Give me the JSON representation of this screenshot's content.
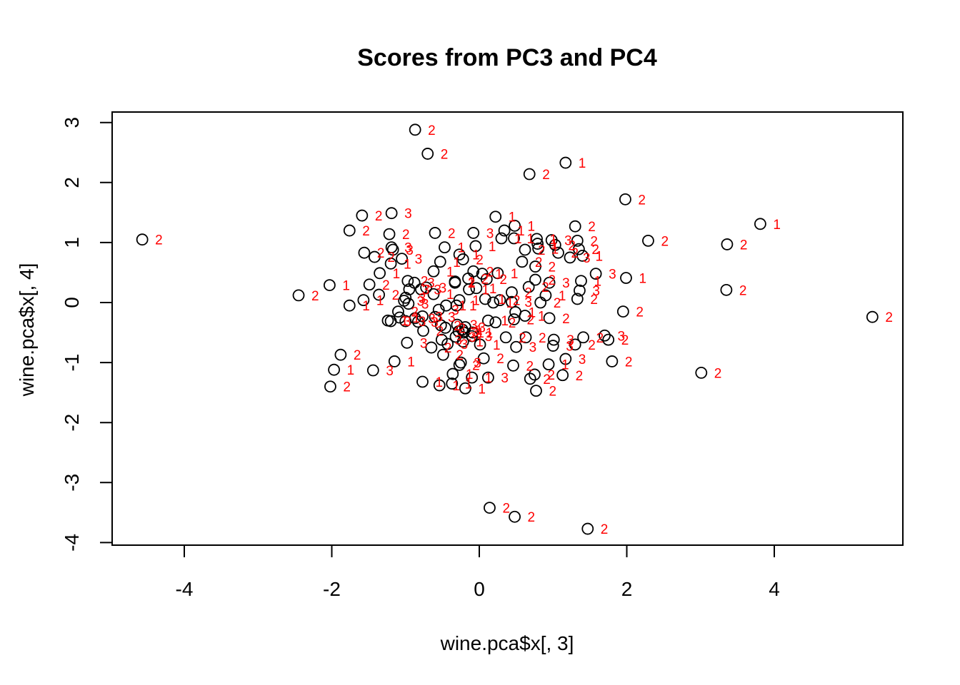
{
  "chart_data": {
    "type": "scatter",
    "title": "Scores from PC3 and PC4",
    "xlabel": "wine.pca$x[, 3]",
    "ylabel": "wine.pca$x[, 4]",
    "xlim": [
      -5,
      5.7
    ],
    "ylim": [
      -4,
      3.1
    ],
    "xticks": [
      -4,
      -2,
      0,
      2,
      4
    ],
    "yticks": [
      -4,
      -3,
      -2,
      -1,
      0,
      1,
      2,
      3
    ],
    "grid": false,
    "legend": "none",
    "point_color": "#000000",
    "label_color": "#ff0000",
    "points": [
      {
        "x": -0.87,
        "y": 2.88,
        "label": "2"
      },
      {
        "x": -0.7,
        "y": 2.48,
        "label": "2"
      },
      {
        "x": 0.68,
        "y": 2.14,
        "label": "2"
      },
      {
        "x": 1.17,
        "y": 2.33,
        "label": "1"
      },
      {
        "x": 1.98,
        "y": 1.72,
        "label": "2"
      },
      {
        "x": 3.81,
        "y": 1.31,
        "label": "1"
      },
      {
        "x": -4.57,
        "y": 1.05,
        "label": "2"
      },
      {
        "x": 2.29,
        "y": 1.03,
        "label": "2"
      },
      {
        "x": 3.36,
        "y": 0.97,
        "label": "2"
      },
      {
        "x": -2.45,
        "y": 0.12,
        "label": "2"
      },
      {
        "x": 3.35,
        "y": 0.21,
        "label": "2"
      },
      {
        "x": 5.33,
        "y": -0.24,
        "label": "2"
      },
      {
        "x": 3.01,
        "y": -1.17,
        "label": "2"
      },
      {
        "x": 0.14,
        "y": -3.42,
        "label": "2"
      },
      {
        "x": 0.48,
        "y": -3.57,
        "label": "2"
      },
      {
        "x": 1.47,
        "y": -3.77,
        "label": "2"
      },
      {
        "x": 1.99,
        "y": 0.41,
        "label": "1"
      },
      {
        "x": 1.95,
        "y": -0.15,
        "label": "2"
      },
      {
        "x": 1.8,
        "y": -0.98,
        "label": "2"
      },
      {
        "x": 1.75,
        "y": -0.62,
        "label": "2"
      },
      {
        "x": 1.7,
        "y": -0.55,
        "label": "3"
      },
      {
        "x": 1.58,
        "y": 0.48,
        "label": "3"
      },
      {
        "x": -2.03,
        "y": 0.29,
        "label": "1"
      },
      {
        "x": -1.76,
        "y": -0.05,
        "label": "1"
      },
      {
        "x": -1.76,
        "y": 1.2,
        "label": "2"
      },
      {
        "x": -1.88,
        "y": -0.87,
        "label": "2"
      },
      {
        "x": -1.97,
        "y": -1.12,
        "label": "1"
      },
      {
        "x": -2.02,
        "y": -1.4,
        "label": "2"
      },
      {
        "x": -1.44,
        "y": -1.13,
        "label": "3"
      },
      {
        "x": -1.15,
        "y": -0.98,
        "label": "1"
      },
      {
        "x": -1.59,
        "y": 1.45,
        "label": "2"
      },
      {
        "x": -1.19,
        "y": 1.49,
        "label": "3"
      },
      {
        "x": -1.22,
        "y": 1.14,
        "label": "2"
      },
      {
        "x": -1.56,
        "y": 0.83,
        "label": "2"
      },
      {
        "x": -1.42,
        "y": 0.76,
        "label": "2"
      },
      {
        "x": -1.17,
        "y": 0.88,
        "label": "3"
      },
      {
        "x": -1.19,
        "y": 0.92,
        "label": "3"
      },
      {
        "x": -1.05,
        "y": 0.73,
        "label": "3"
      },
      {
        "x": -1.2,
        "y": 0.65,
        "label": "1"
      },
      {
        "x": -1.35,
        "y": 0.49,
        "label": "1"
      },
      {
        "x": -1.49,
        "y": 0.3,
        "label": "2"
      },
      {
        "x": -1.36,
        "y": 0.13,
        "label": "2"
      },
      {
        "x": -1.57,
        "y": 0.04,
        "label": "1"
      },
      {
        "x": -0.97,
        "y": 0.36,
        "label": "2"
      },
      {
        "x": -0.88,
        "y": 0.33,
        "label": "3"
      },
      {
        "x": -0.95,
        "y": 0.22,
        "label": "3"
      },
      {
        "x": -1.0,
        "y": 0.08,
        "label": "3"
      },
      {
        "x": -1.02,
        "y": 0.03,
        "label": "3"
      },
      {
        "x": -0.96,
        "y": -0.02,
        "label": "3"
      },
      {
        "x": -1.1,
        "y": -0.15,
        "label": "2"
      },
      {
        "x": -1.24,
        "y": -0.3,
        "label": "1"
      },
      {
        "x": -1.2,
        "y": -0.31,
        "label": "3"
      },
      {
        "x": -1.08,
        "y": -0.25,
        "label": "1"
      },
      {
        "x": -1.0,
        "y": -0.31,
        "label": "3"
      },
      {
        "x": -0.98,
        "y": -0.67,
        "label": "3"
      },
      {
        "x": -0.77,
        "y": -1.32,
        "label": "1"
      },
      {
        "x": -0.76,
        "y": -0.47,
        "label": "2"
      },
      {
        "x": -0.65,
        "y": -0.75,
        "label": "2"
      },
      {
        "x": -0.49,
        "y": -0.87,
        "label": "2"
      },
      {
        "x": -0.51,
        "y": -0.62,
        "label": "3"
      },
      {
        "x": -0.36,
        "y": -1.19,
        "label": "1"
      },
      {
        "x": -0.27,
        "y": -1.04,
        "label": "2"
      },
      {
        "x": -0.54,
        "y": -1.38,
        "label": "1"
      },
      {
        "x": -0.37,
        "y": -1.35,
        "label": "1"
      },
      {
        "x": -0.19,
        "y": -1.43,
        "label": "1"
      },
      {
        "x": -0.1,
        "y": -1.25,
        "label": "1"
      },
      {
        "x": 0.12,
        "y": -1.25,
        "label": "3"
      },
      {
        "x": 0.06,
        "y": -0.93,
        "label": "2"
      },
      {
        "x": 0.46,
        "y": -1.05,
        "label": "2"
      },
      {
        "x": 0.69,
        "y": -1.27,
        "label": "2"
      },
      {
        "x": 0.77,
        "y": -1.47,
        "label": "2"
      },
      {
        "x": 0.75,
        "y": -1.2,
        "label": "2"
      },
      {
        "x": 0.94,
        "y": -1.03,
        "label": "1"
      },
      {
        "x": 1.13,
        "y": -1.21,
        "label": "2"
      },
      {
        "x": 1.17,
        "y": -0.94,
        "label": "3"
      },
      {
        "x": 1.3,
        "y": -0.7,
        "label": "2"
      },
      {
        "x": 1.41,
        "y": -0.58,
        "label": "2"
      },
      {
        "x": 1.0,
        "y": -0.72,
        "label": "3"
      },
      {
        "x": 1.01,
        "y": -0.62,
        "label": "3"
      },
      {
        "x": 0.63,
        "y": -0.58,
        "label": "2"
      },
      {
        "x": 0.5,
        "y": -0.74,
        "label": "3"
      },
      {
        "x": 0.95,
        "y": -0.26,
        "label": "2"
      },
      {
        "x": 0.83,
        "y": 0.0,
        "label": "2"
      },
      {
        "x": 0.9,
        "y": 0.12,
        "label": "1"
      },
      {
        "x": 0.76,
        "y": 0.38,
        "label": "2"
      },
      {
        "x": 0.95,
        "y": 0.33,
        "label": "3"
      },
      {
        "x": 0.67,
        "y": 0.26,
        "label": "2"
      },
      {
        "x": 1.33,
        "y": 0.06,
        "label": "2"
      },
      {
        "x": 1.36,
        "y": 0.2,
        "label": "3"
      },
      {
        "x": 1.38,
        "y": 0.36,
        "label": "1"
      },
      {
        "x": 1.3,
        "y": 1.27,
        "label": "2"
      },
      {
        "x": 1.33,
        "y": 1.03,
        "label": "2"
      },
      {
        "x": 1.35,
        "y": 0.89,
        "label": "2"
      },
      {
        "x": 1.4,
        "y": 0.78,
        "label": "1"
      },
      {
        "x": 1.23,
        "y": 0.75,
        "label": "3"
      },
      {
        "x": 0.98,
        "y": 1.04,
        "label": "3"
      },
      {
        "x": 1.03,
        "y": 0.96,
        "label": "2"
      },
      {
        "x": 1.07,
        "y": 0.83,
        "label": "2"
      },
      {
        "x": 0.78,
        "y": 1.06,
        "label": "1"
      },
      {
        "x": 0.79,
        "y": 0.98,
        "label": "1"
      },
      {
        "x": 0.8,
        "y": 0.9,
        "label": "1"
      },
      {
        "x": 0.62,
        "y": 0.88,
        "label": "2"
      },
      {
        "x": 0.76,
        "y": 0.6,
        "label": "2"
      },
      {
        "x": 0.58,
        "y": 0.68,
        "label": "2"
      },
      {
        "x": 0.48,
        "y": 1.28,
        "label": "1"
      },
      {
        "x": 0.47,
        "y": 1.07,
        "label": "1"
      },
      {
        "x": 0.34,
        "y": 1.2,
        "label": "1"
      },
      {
        "x": 0.22,
        "y": 1.43,
        "label": "1"
      },
      {
        "x": 0.3,
        "y": 1.07,
        "label": "1"
      },
      {
        "x": -0.08,
        "y": 1.16,
        "label": "3"
      },
      {
        "x": -0.05,
        "y": 0.94,
        "label": "1"
      },
      {
        "x": -0.22,
        "y": 0.72,
        "label": "2"
      },
      {
        "x": -0.27,
        "y": 0.8,
        "label": "1"
      },
      {
        "x": -0.47,
        "y": 0.92,
        "label": "1"
      },
      {
        "x": -0.6,
        "y": 1.16,
        "label": "2"
      },
      {
        "x": -0.53,
        "y": 0.68,
        "label": "1"
      },
      {
        "x": -0.62,
        "y": 0.52,
        "label": "1"
      },
      {
        "x": -0.33,
        "y": 0.35,
        "label": "1"
      },
      {
        "x": -0.33,
        "y": 0.33,
        "label": "2"
      },
      {
        "x": -0.15,
        "y": 0.4,
        "label": "2"
      },
      {
        "x": -0.14,
        "y": 0.22,
        "label": "1"
      },
      {
        "x": -0.04,
        "y": 0.24,
        "label": "1"
      },
      {
        "x": -0.08,
        "y": 0.52,
        "label": "2"
      },
      {
        "x": 0.1,
        "y": 0.39,
        "label": "2"
      },
      {
        "x": 0.25,
        "y": 0.49,
        "label": "1"
      },
      {
        "x": 0.04,
        "y": 0.48,
        "label": "1"
      },
      {
        "x": 0.44,
        "y": 0.17,
        "label": "2"
      },
      {
        "x": 0.44,
        "y": 0.01,
        "label": "3"
      },
      {
        "x": 0.28,
        "y": 0.04,
        "label": "2"
      },
      {
        "x": 0.19,
        "y": 0.0,
        "label": "1"
      },
      {
        "x": 0.08,
        "y": 0.06,
        "label": "1"
      },
      {
        "x": -0.27,
        "y": 0.04,
        "label": "1"
      },
      {
        "x": -0.31,
        "y": -0.05,
        "label": "1"
      },
      {
        "x": -0.45,
        "y": -0.05,
        "label": "1"
      },
      {
        "x": -0.55,
        "y": -0.12,
        "label": "3"
      },
      {
        "x": -0.62,
        "y": 0.14,
        "label": "1"
      },
      {
        "x": -0.72,
        "y": 0.25,
        "label": "3"
      },
      {
        "x": -0.79,
        "y": 0.22,
        "label": "3"
      },
      {
        "x": -0.6,
        "y": -0.24,
        "label": "3"
      },
      {
        "x": -0.77,
        "y": -0.23,
        "label": "3"
      },
      {
        "x": -0.83,
        "y": -0.32,
        "label": "3"
      },
      {
        "x": -0.87,
        "y": -0.26,
        "label": "3"
      },
      {
        "x": -0.3,
        "y": -0.37,
        "label": "3"
      },
      {
        "x": -0.28,
        "y": -0.48,
        "label": "3"
      },
      {
        "x": -0.32,
        "y": -0.57,
        "label": "3"
      },
      {
        "x": -0.46,
        "y": -0.42,
        "label": "2"
      },
      {
        "x": -0.19,
        "y": -0.41,
        "label": "3"
      },
      {
        "x": -0.1,
        "y": -0.56,
        "label": "3"
      },
      {
        "x": -0.22,
        "y": -0.65,
        "label": "1"
      },
      {
        "x": -0.23,
        "y": -0.45,
        "label": "1"
      },
      {
        "x": -0.21,
        "y": -0.5,
        "label": "1"
      },
      {
        "x": -0.09,
        "y": -0.5,
        "label": "1"
      },
      {
        "x": 0.01,
        "y": -0.7,
        "label": "1"
      },
      {
        "x": 0.12,
        "y": -0.3,
        "label": "1"
      },
      {
        "x": 0.22,
        "y": -0.33,
        "label": "2"
      },
      {
        "x": 0.47,
        "y": -0.28,
        "label": "2"
      },
      {
        "x": 0.49,
        "y": -0.16,
        "label": "1"
      },
      {
        "x": 0.36,
        "y": -0.58,
        "label": "2"
      },
      {
        "x": 0.62,
        "y": -0.22,
        "label": "1"
      },
      {
        "x": -0.25,
        "y": -1.0,
        "label": "3"
      },
      {
        "x": -0.52,
        "y": -0.38,
        "label": "2"
      },
      {
        "x": -0.43,
        "y": -0.69,
        "label": "3"
      }
    ]
  }
}
